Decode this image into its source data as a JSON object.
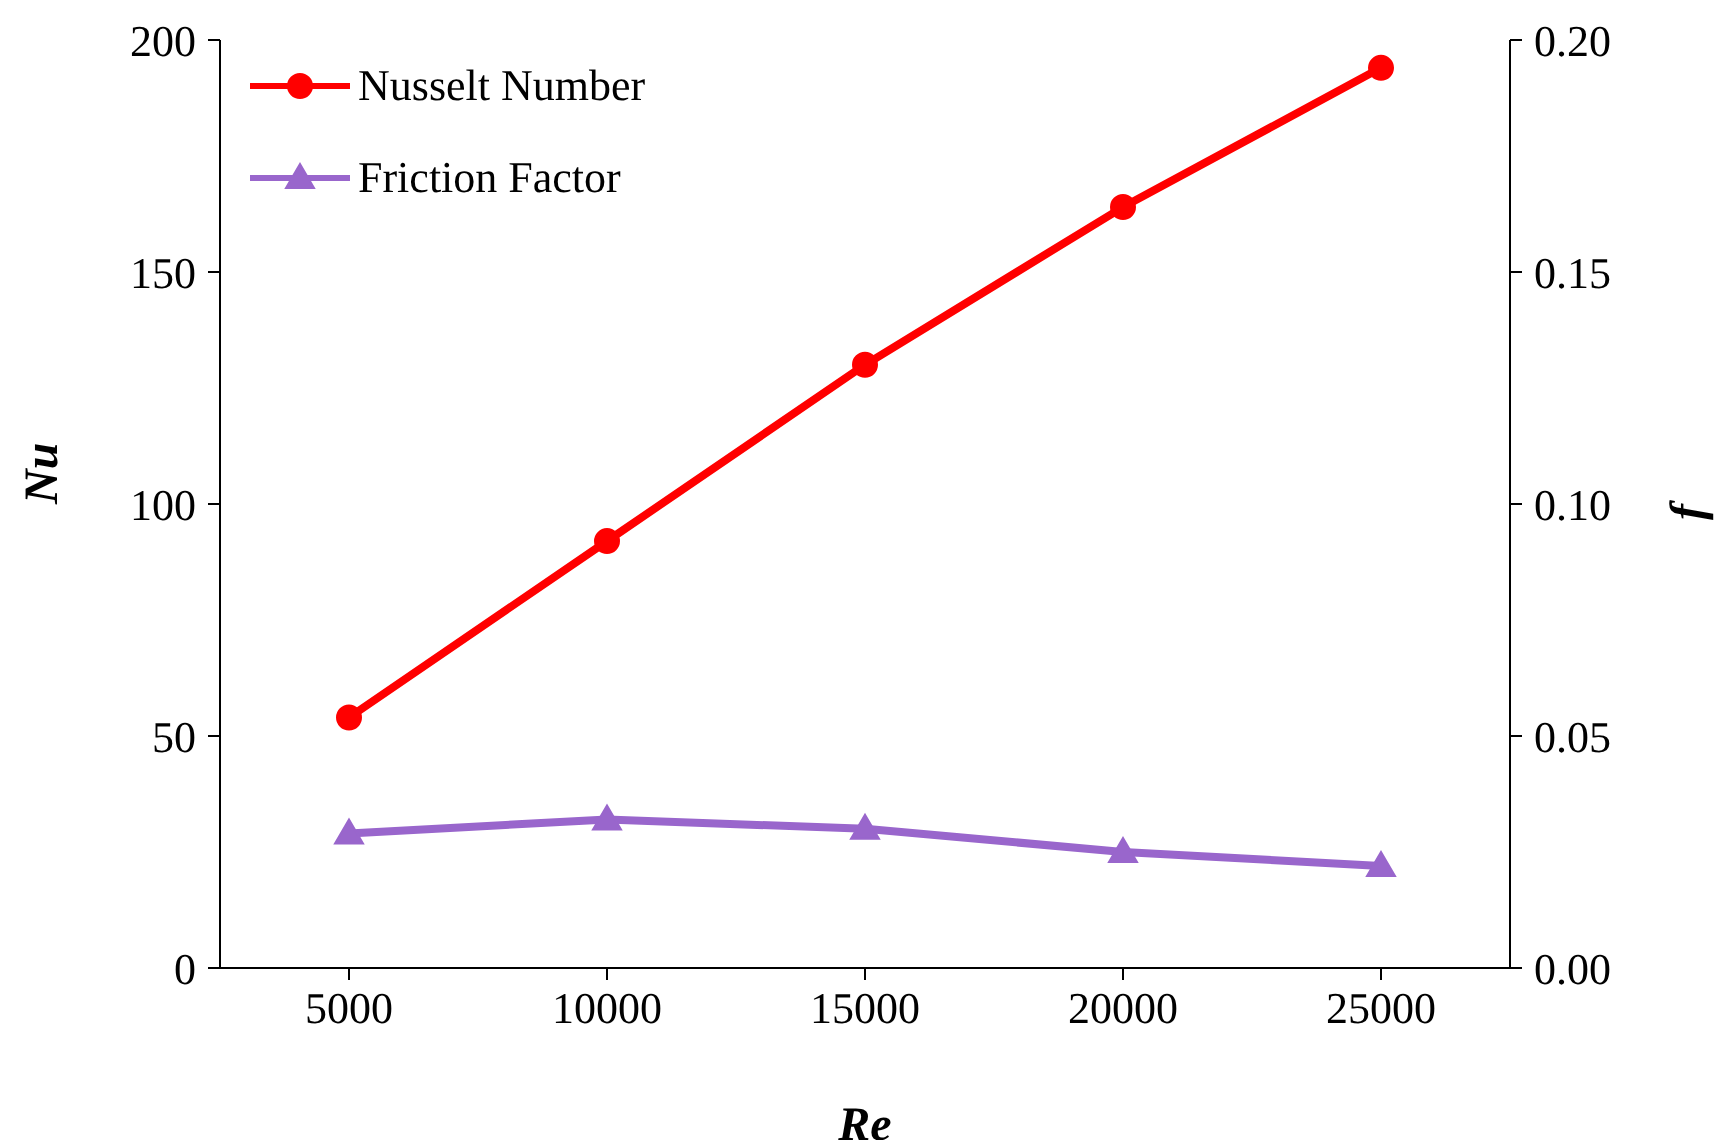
{
  "chart_data": {
    "type": "line",
    "xlabel": "Re",
    "ylabel": "Nu",
    "y2label": "f",
    "x": [
      5000,
      10000,
      15000,
      20000,
      25000
    ],
    "xlim": [
      2500,
      27500
    ],
    "xticks": [
      5000,
      10000,
      15000,
      20000,
      25000
    ],
    "ylim": [
      0,
      200
    ],
    "yticks": [
      0,
      50,
      100,
      150,
      200
    ],
    "y2lim": [
      0,
      0.2
    ],
    "y2ticks": [
      {
        "value": 0,
        "label": "0.00"
      },
      {
        "value": 0.05,
        "label": "0.05"
      },
      {
        "value": 0.1,
        "label": "0.10"
      },
      {
        "value": 0.15,
        "label": "0.15"
      },
      {
        "value": 0.2,
        "label": "0.20"
      }
    ],
    "series": [
      {
        "name": "Nusselt Number",
        "color": "#ff0000",
        "marker": "circle",
        "values": [
          54,
          92,
          130,
          164,
          194
        ]
      },
      {
        "name": "Friction Factor",
        "color": "#9966cc",
        "marker": "triangle",
        "axis": "y2",
        "values": [
          0.029,
          0.032,
          0.03,
          0.025,
          0.022
        ]
      }
    ],
    "grid": false,
    "legend": "top left",
    "line_style": "solid"
  }
}
